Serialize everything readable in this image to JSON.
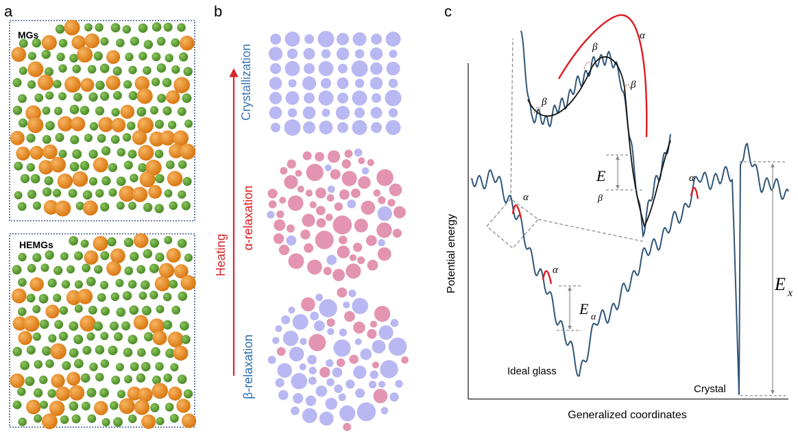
{
  "panels": {
    "a": {
      "letter": "a",
      "boxes": [
        {
          "label": "MGs"
        },
        {
          "label": "HEMGs"
        }
      ]
    },
    "b": {
      "letter": "b",
      "arrow_label": "Heating",
      "states": [
        {
          "label": "Crystallization"
        },
        {
          "label": "α-relaxation"
        },
        {
          "label": "β-relaxation"
        }
      ]
    },
    "c": {
      "letter": "c",
      "ylabel": "Potential energy",
      "xlabel": "Generalized coordinates",
      "annotations": {
        "alpha": "α",
        "beta": "β",
        "E_beta_main": "E",
        "E_beta_sub": "β",
        "E_alpha_main": "E",
        "E_alpha_sub": "α",
        "E_x_main": "E",
        "E_x_sub": "x",
        "ideal_glass": "Ideal glass",
        "crystal": "Crystal"
      }
    }
  },
  "colors": {
    "orange_atom": "#e8891c",
    "green_atom": "#5f9e37",
    "lavender_atom": "#b9b8f2",
    "pink_atom": "#e394b0",
    "curve": "#2f5577",
    "red": "#e0191f",
    "blue_text": "#2e6fb0",
    "grey_dash": "#8c8c8c",
    "box_border": "#3c5a8c"
  }
}
